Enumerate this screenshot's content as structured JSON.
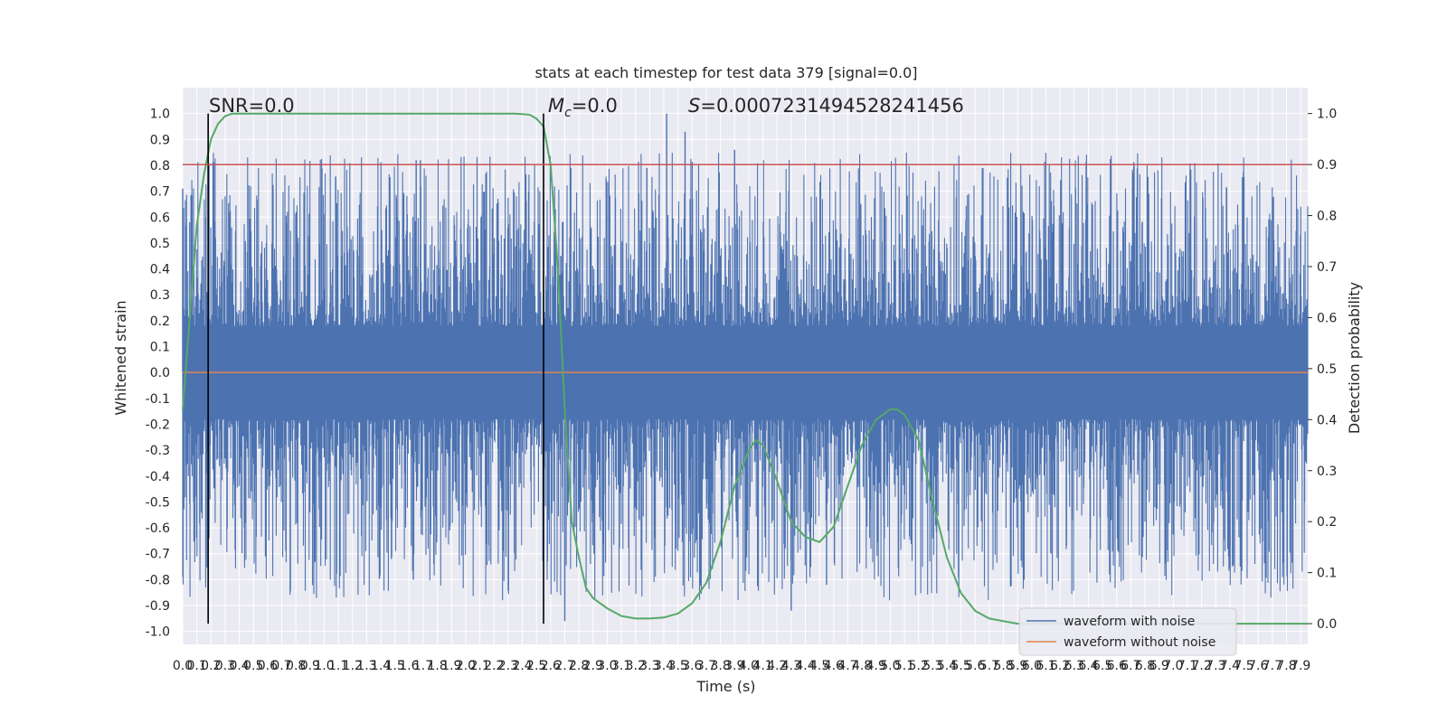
{
  "chart_data": {
    "type": "line",
    "title": "stats at each timestep for test data 379 [signal=0.0]",
    "xlabel": "Time (s)",
    "ylabel": "Whitened strain",
    "y2label": "Detection probability",
    "xlim": [
      0.0,
      7.95
    ],
    "ylim": [
      -1.05,
      1.1
    ],
    "y2lim": [
      -0.0,
      1.0
    ],
    "xticks_step": 0.1,
    "xtick_count": 80,
    "yticks": [
      -1.0,
      -0.9,
      -0.8,
      -0.7,
      -0.6,
      -0.5,
      -0.4,
      -0.3,
      -0.2,
      -0.1,
      0.0,
      0.1,
      0.2,
      0.3,
      0.4,
      0.5,
      0.6,
      0.7,
      0.8,
      0.9,
      1.0
    ],
    "y2ticks": [
      0.0,
      0.1,
      0.2,
      0.3,
      0.4,
      0.5,
      0.6,
      0.7,
      0.8,
      0.9,
      1.0
    ],
    "grid": true,
    "legend_placement": "lower-right",
    "annotations": {
      "snr": "SNR=0.0",
      "mc_symbol": "M",
      "mc_sub": "c",
      "mc_value": "=0.0",
      "s_symbol": "S",
      "s_value": "=0.0007231494528241456"
    },
    "vlines": [
      {
        "x": 0.18,
        "ymin": -0.97,
        "ymax": 1.0,
        "color": "#000000"
      },
      {
        "x": 2.55,
        "ymin": -0.97,
        "ymax": 1.0,
        "color": "#000000"
      }
    ],
    "threshold": {
      "y2": 0.9,
      "color": "#c44e52"
    },
    "series": [
      {
        "name": "waveform with noise",
        "color": "#4c72b0",
        "kind": "noise",
        "envelope": {
          "upper_typical": 0.45,
          "upper_max": 1.0,
          "lower_typical": -0.48,
          "lower_min": -0.96,
          "notable_peaks": [
            {
              "x": 0.0,
              "y": 0.71
            },
            {
              "x": 1.65,
              "y": 0.82
            },
            {
              "x": 1.68,
              "y": 0.82
            },
            {
              "x": 3.42,
              "y": 1.0
            },
            {
              "x": 3.55,
              "y": 0.93
            },
            {
              "x": 3.28,
              "y": 0.79
            },
            {
              "x": 3.9,
              "y": 0.86
            },
            {
              "x": 2.7,
              "y": -0.96
            },
            {
              "x": 4.3,
              "y": -0.92
            },
            {
              "x": 1.63,
              "y": -0.8
            },
            {
              "x": 4.55,
              "y": -0.82
            },
            {
              "x": 6.55,
              "y": -0.78
            }
          ]
        }
      },
      {
        "name": "waveform without noise",
        "color": "#dd8452",
        "x": [
          0.0,
          7.95
        ],
        "y": [
          0.0,
          0.0
        ]
      },
      {
        "name": "",
        "color": "#55a868",
        "axis": "y2",
        "x": [
          0.0,
          0.05,
          0.1,
          0.15,
          0.2,
          0.25,
          0.3,
          0.35,
          0.4,
          0.45,
          0.5,
          0.6,
          0.8,
          1.0,
          1.5,
          2.0,
          2.2,
          2.35,
          2.45,
          2.5,
          2.55,
          2.6,
          2.65,
          2.7,
          2.75,
          2.8,
          2.85,
          2.9,
          3.0,
          3.1,
          3.2,
          3.3,
          3.4,
          3.5,
          3.6,
          3.7,
          3.8,
          3.9,
          4.0,
          4.05,
          4.1,
          4.2,
          4.3,
          4.4,
          4.5,
          4.6,
          4.7,
          4.8,
          4.9,
          5.0,
          5.05,
          5.1,
          5.2,
          5.3,
          5.4,
          5.5,
          5.6,
          5.7,
          5.8,
          5.9,
          6.0,
          6.2,
          6.5,
          7.0,
          7.5,
          7.95
        ],
        "y": [
          0.42,
          0.6,
          0.78,
          0.88,
          0.95,
          0.98,
          0.995,
          1.0,
          1.0,
          1.0,
          1.0,
          1.0,
          1.0,
          1.0,
          1.0,
          1.0,
          1.0,
          1.0,
          0.998,
          0.99,
          0.975,
          0.9,
          0.7,
          0.42,
          0.2,
          0.13,
          0.07,
          0.05,
          0.03,
          0.015,
          0.01,
          0.01,
          0.012,
          0.02,
          0.04,
          0.08,
          0.16,
          0.27,
          0.34,
          0.36,
          0.35,
          0.28,
          0.2,
          0.17,
          0.16,
          0.19,
          0.27,
          0.35,
          0.4,
          0.42,
          0.42,
          0.41,
          0.36,
          0.24,
          0.13,
          0.06,
          0.025,
          0.01,
          0.005,
          0.0,
          0.0,
          0.0,
          0.0,
          0.0,
          0.0,
          0.0
        ]
      }
    ]
  }
}
